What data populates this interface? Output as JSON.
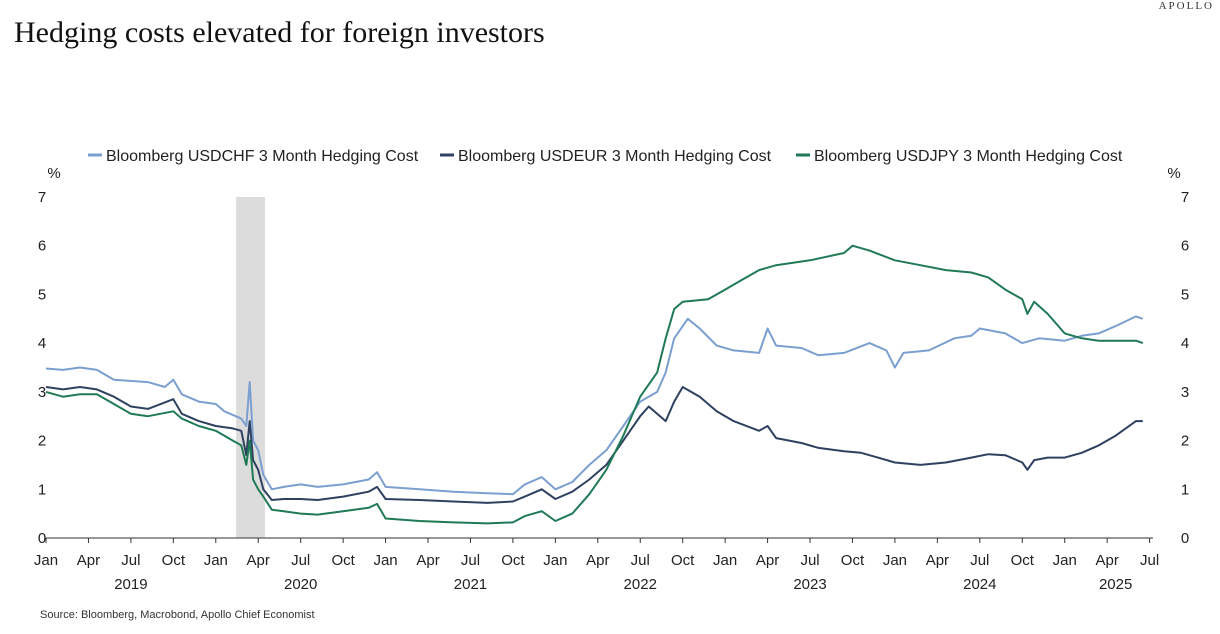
{
  "brand": "APOLLO",
  "title": "Hedging costs elevated for foreign investors",
  "source": "Source: Bloomberg, Macrobond, Apollo Chief Economist",
  "colors": {
    "chf": "#7b9fcf",
    "eur": "#2e4160",
    "jpy": "#1f7a55",
    "shade": "#dcdcdc",
    "axis": "#333333"
  },
  "chart_data": {
    "type": "line",
    "title": "Hedging costs elevated for foreign investors",
    "ylabel_left": "%",
    "ylabel_right": "%",
    "ylim": [
      0,
      7
    ],
    "yticks": [
      0,
      1,
      2,
      3,
      4,
      5,
      6,
      7
    ],
    "xlim": [
      2019.0,
      2025.52
    ],
    "month_ticks": [
      {
        "x": 2019.0,
        "label": "Jan"
      },
      {
        "x": 2019.25,
        "label": "Apr"
      },
      {
        "x": 2019.5,
        "label": "Jul"
      },
      {
        "x": 2019.75,
        "label": "Oct"
      },
      {
        "x": 2020.0,
        "label": "Jan"
      },
      {
        "x": 2020.25,
        "label": "Apr"
      },
      {
        "x": 2020.5,
        "label": "Jul"
      },
      {
        "x": 2020.75,
        "label": "Oct"
      },
      {
        "x": 2021.0,
        "label": "Jan"
      },
      {
        "x": 2021.25,
        "label": "Apr"
      },
      {
        "x": 2021.5,
        "label": "Jul"
      },
      {
        "x": 2021.75,
        "label": "Oct"
      },
      {
        "x": 2022.0,
        "label": "Jan"
      },
      {
        "x": 2022.25,
        "label": "Apr"
      },
      {
        "x": 2022.5,
        "label": "Jul"
      },
      {
        "x": 2022.75,
        "label": "Oct"
      },
      {
        "x": 2023.0,
        "label": "Jan"
      },
      {
        "x": 2023.25,
        "label": "Apr"
      },
      {
        "x": 2023.5,
        "label": "Jul"
      },
      {
        "x": 2023.75,
        "label": "Oct"
      },
      {
        "x": 2024.0,
        "label": "Jan"
      },
      {
        "x": 2024.25,
        "label": "Apr"
      },
      {
        "x": 2024.5,
        "label": "Jul"
      },
      {
        "x": 2024.75,
        "label": "Oct"
      },
      {
        "x": 2025.0,
        "label": "Jan"
      },
      {
        "x": 2025.25,
        "label": "Apr"
      },
      {
        "x": 2025.5,
        "label": "Jul"
      }
    ],
    "year_labels": [
      {
        "x": 2019.5,
        "label": "2019"
      },
      {
        "x": 2020.5,
        "label": "2020"
      },
      {
        "x": 2021.5,
        "label": "2021"
      },
      {
        "x": 2022.5,
        "label": "2022"
      },
      {
        "x": 2023.5,
        "label": "2023"
      },
      {
        "x": 2024.5,
        "label": "2024"
      },
      {
        "x": 2025.3,
        "label": "2025"
      }
    ],
    "recession_band": [
      2020.12,
      2020.29
    ],
    "series": [
      {
        "name": "Bloomberg USDCHF 3 Month Hedging Cost",
        "key": "chf",
        "points": [
          [
            2019.0,
            3.48
          ],
          [
            2019.1,
            3.45
          ],
          [
            2019.2,
            3.5
          ],
          [
            2019.3,
            3.45
          ],
          [
            2019.4,
            3.25
          ],
          [
            2019.6,
            3.2
          ],
          [
            2019.7,
            3.1
          ],
          [
            2019.75,
            3.25
          ],
          [
            2019.8,
            2.95
          ],
          [
            2019.9,
            2.8
          ],
          [
            2020.0,
            2.75
          ],
          [
            2020.05,
            2.6
          ],
          [
            2020.15,
            2.45
          ],
          [
            2020.18,
            2.3
          ],
          [
            2020.2,
            3.2
          ],
          [
            2020.22,
            2.0
          ],
          [
            2020.25,
            1.8
          ],
          [
            2020.28,
            1.3
          ],
          [
            2020.33,
            1.0
          ],
          [
            2020.4,
            1.05
          ],
          [
            2020.5,
            1.1
          ],
          [
            2020.6,
            1.05
          ],
          [
            2020.75,
            1.1
          ],
          [
            2020.9,
            1.2
          ],
          [
            2020.95,
            1.35
          ],
          [
            2021.0,
            1.05
          ],
          [
            2021.2,
            1.0
          ],
          [
            2021.4,
            0.95
          ],
          [
            2021.6,
            0.92
          ],
          [
            2021.75,
            0.9
          ],
          [
            2021.82,
            1.1
          ],
          [
            2021.92,
            1.25
          ],
          [
            2022.0,
            1.0
          ],
          [
            2022.1,
            1.15
          ],
          [
            2022.2,
            1.5
          ],
          [
            2022.3,
            1.8
          ],
          [
            2022.4,
            2.3
          ],
          [
            2022.5,
            2.8
          ],
          [
            2022.6,
            3.0
          ],
          [
            2022.65,
            3.4
          ],
          [
            2022.7,
            4.1
          ],
          [
            2022.78,
            4.5
          ],
          [
            2022.85,
            4.3
          ],
          [
            2022.95,
            3.95
          ],
          [
            2023.05,
            3.85
          ],
          [
            2023.2,
            3.8
          ],
          [
            2023.25,
            4.3
          ],
          [
            2023.3,
            3.95
          ],
          [
            2023.45,
            3.9
          ],
          [
            2023.55,
            3.75
          ],
          [
            2023.7,
            3.8
          ],
          [
            2023.85,
            4.0
          ],
          [
            2023.95,
            3.85
          ],
          [
            2024.0,
            3.5
          ],
          [
            2024.05,
            3.8
          ],
          [
            2024.2,
            3.85
          ],
          [
            2024.35,
            4.1
          ],
          [
            2024.45,
            4.15
          ],
          [
            2024.5,
            4.3
          ],
          [
            2024.65,
            4.2
          ],
          [
            2024.75,
            4.0
          ],
          [
            2024.85,
            4.1
          ],
          [
            2025.0,
            4.05
          ],
          [
            2025.1,
            4.15
          ],
          [
            2025.2,
            4.2
          ],
          [
            2025.3,
            4.35
          ],
          [
            2025.42,
            4.55
          ],
          [
            2025.46,
            4.5
          ]
        ]
      },
      {
        "name": "Bloomberg USDEUR 3 Month Hedging Cost",
        "key": "eur",
        "points": [
          [
            2019.0,
            3.1
          ],
          [
            2019.1,
            3.05
          ],
          [
            2019.2,
            3.1
          ],
          [
            2019.3,
            3.05
          ],
          [
            2019.4,
            2.9
          ],
          [
            2019.5,
            2.7
          ],
          [
            2019.6,
            2.65
          ],
          [
            2019.75,
            2.85
          ],
          [
            2019.8,
            2.55
          ],
          [
            2019.9,
            2.4
          ],
          [
            2020.0,
            2.3
          ],
          [
            2020.1,
            2.25
          ],
          [
            2020.15,
            2.2
          ],
          [
            2020.18,
            1.7
          ],
          [
            2020.2,
            2.4
          ],
          [
            2020.22,
            1.6
          ],
          [
            2020.25,
            1.4
          ],
          [
            2020.28,
            1.0
          ],
          [
            2020.33,
            0.78
          ],
          [
            2020.4,
            0.8
          ],
          [
            2020.5,
            0.8
          ],
          [
            2020.6,
            0.78
          ],
          [
            2020.75,
            0.85
          ],
          [
            2020.9,
            0.95
          ],
          [
            2020.95,
            1.05
          ],
          [
            2021.0,
            0.8
          ],
          [
            2021.2,
            0.78
          ],
          [
            2021.4,
            0.75
          ],
          [
            2021.6,
            0.72
          ],
          [
            2021.75,
            0.75
          ],
          [
            2021.82,
            0.85
          ],
          [
            2021.92,
            1.0
          ],
          [
            2022.0,
            0.8
          ],
          [
            2022.1,
            0.95
          ],
          [
            2022.2,
            1.2
          ],
          [
            2022.3,
            1.5
          ],
          [
            2022.4,
            2.0
          ],
          [
            2022.5,
            2.5
          ],
          [
            2022.55,
            2.7
          ],
          [
            2022.65,
            2.4
          ],
          [
            2022.7,
            2.8
          ],
          [
            2022.75,
            3.1
          ],
          [
            2022.85,
            2.9
          ],
          [
            2022.95,
            2.6
          ],
          [
            2023.05,
            2.4
          ],
          [
            2023.2,
            2.2
          ],
          [
            2023.25,
            2.3
          ],
          [
            2023.3,
            2.05
          ],
          [
            2023.45,
            1.95
          ],
          [
            2023.55,
            1.85
          ],
          [
            2023.7,
            1.78
          ],
          [
            2023.8,
            1.75
          ],
          [
            2023.9,
            1.65
          ],
          [
            2024.0,
            1.55
          ],
          [
            2024.15,
            1.5
          ],
          [
            2024.3,
            1.55
          ],
          [
            2024.45,
            1.65
          ],
          [
            2024.55,
            1.72
          ],
          [
            2024.65,
            1.7
          ],
          [
            2024.75,
            1.55
          ],
          [
            2024.78,
            1.4
          ],
          [
            2024.82,
            1.6
          ],
          [
            2024.9,
            1.65
          ],
          [
            2025.0,
            1.65
          ],
          [
            2025.1,
            1.75
          ],
          [
            2025.2,
            1.9
          ],
          [
            2025.3,
            2.1
          ],
          [
            2025.42,
            2.4
          ],
          [
            2025.46,
            2.4
          ]
        ]
      },
      {
        "name": "Bloomberg USDJPY 3 Month Hedging Cost",
        "key": "jpy",
        "points": [
          [
            2019.0,
            3.0
          ],
          [
            2019.1,
            2.9
          ],
          [
            2019.2,
            2.95
          ],
          [
            2019.3,
            2.95
          ],
          [
            2019.4,
            2.75
          ],
          [
            2019.5,
            2.55
          ],
          [
            2019.6,
            2.5
          ],
          [
            2019.75,
            2.6
          ],
          [
            2019.8,
            2.45
          ],
          [
            2019.9,
            2.3
          ],
          [
            2020.0,
            2.2
          ],
          [
            2020.1,
            2.0
          ],
          [
            2020.15,
            1.9
          ],
          [
            2020.18,
            1.5
          ],
          [
            2020.2,
            2.0
          ],
          [
            2020.22,
            1.2
          ],
          [
            2020.25,
            1.0
          ],
          [
            2020.28,
            0.85
          ],
          [
            2020.33,
            0.58
          ],
          [
            2020.4,
            0.55
          ],
          [
            2020.5,
            0.5
          ],
          [
            2020.6,
            0.48
          ],
          [
            2020.75,
            0.55
          ],
          [
            2020.9,
            0.62
          ],
          [
            2020.95,
            0.7
          ],
          [
            2021.0,
            0.4
          ],
          [
            2021.2,
            0.35
          ],
          [
            2021.4,
            0.32
          ],
          [
            2021.6,
            0.3
          ],
          [
            2021.75,
            0.32
          ],
          [
            2021.82,
            0.45
          ],
          [
            2021.92,
            0.55
          ],
          [
            2022.0,
            0.35
          ],
          [
            2022.1,
            0.5
          ],
          [
            2022.2,
            0.9
          ],
          [
            2022.3,
            1.4
          ],
          [
            2022.4,
            2.1
          ],
          [
            2022.5,
            2.9
          ],
          [
            2022.6,
            3.4
          ],
          [
            2022.65,
            4.1
          ],
          [
            2022.7,
            4.7
          ],
          [
            2022.75,
            4.85
          ],
          [
            2022.9,
            4.9
          ],
          [
            2023.0,
            5.1
          ],
          [
            2023.1,
            5.3
          ],
          [
            2023.2,
            5.5
          ],
          [
            2023.3,
            5.6
          ],
          [
            2023.5,
            5.7
          ],
          [
            2023.7,
            5.85
          ],
          [
            2023.75,
            6.0
          ],
          [
            2023.85,
            5.9
          ],
          [
            2024.0,
            5.7
          ],
          [
            2024.15,
            5.6
          ],
          [
            2024.3,
            5.5
          ],
          [
            2024.45,
            5.45
          ],
          [
            2024.55,
            5.35
          ],
          [
            2024.65,
            5.1
          ],
          [
            2024.75,
            4.9
          ],
          [
            2024.78,
            4.6
          ],
          [
            2024.82,
            4.85
          ],
          [
            2024.9,
            4.6
          ],
          [
            2025.0,
            4.2
          ],
          [
            2025.1,
            4.1
          ],
          [
            2025.2,
            4.05
          ],
          [
            2025.3,
            4.05
          ],
          [
            2025.42,
            4.05
          ],
          [
            2025.46,
            4.0
          ]
        ]
      }
    ]
  }
}
